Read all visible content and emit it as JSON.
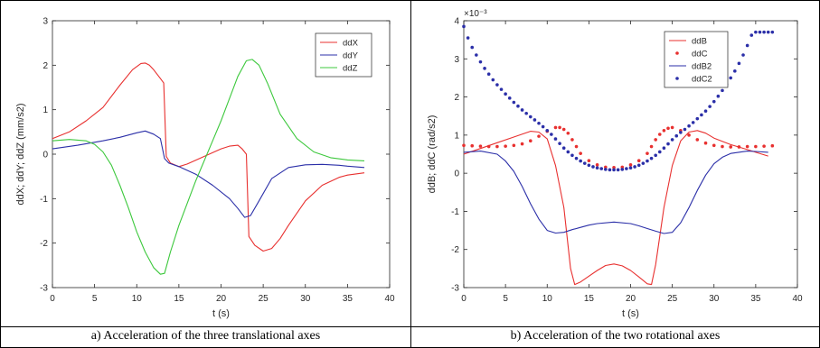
{
  "captions": {
    "left": "a) Acceleration of the three translational axes",
    "right": "b) Acceleration of the two rotational axes"
  },
  "chart_data": [
    {
      "type": "line",
      "xlabel": "t (s)",
      "ylabel": "ddX; ddY; ddZ (mm/s2)",
      "xlim": [
        0,
        40
      ],
      "ylim": [
        -3,
        3
      ],
      "xticks": [
        "0",
        "5",
        "10",
        "15",
        "20",
        "25",
        "30",
        "35",
        "40"
      ],
      "yticks": [
        "-3",
        "-2",
        "-1",
        "0",
        "1",
        "2",
        "3"
      ],
      "grid": false,
      "legend_position": "top-right",
      "series": [
        {
          "name": "ddX",
          "color": "#e8302f",
          "style": "line",
          "x": [
            0,
            2,
            4,
            6,
            8,
            9.5,
            10.5,
            11,
            11.5,
            12,
            12.8,
            13.2,
            13.5,
            14,
            15,
            16,
            18,
            20,
            21,
            22,
            22.5,
            23,
            23.3,
            24,
            25,
            26,
            27,
            28,
            30,
            32,
            34,
            35,
            37
          ],
          "y": [
            0.35,
            0.5,
            0.75,
            1.05,
            1.55,
            1.9,
            2.04,
            2.05,
            2.0,
            1.9,
            1.7,
            1.6,
            -0.05,
            -0.2,
            -0.28,
            -0.22,
            -0.05,
            0.12,
            0.18,
            0.2,
            0.12,
            0.0,
            -1.85,
            -2.05,
            -2.18,
            -2.12,
            -1.9,
            -1.6,
            -1.05,
            -0.7,
            -0.52,
            -0.47,
            -0.42
          ]
        },
        {
          "name": "ddY",
          "color": "#2b2fa8",
          "style": "line",
          "x": [
            0,
            3,
            6,
            8,
            10,
            11,
            12,
            12.8,
            13.3,
            13.8,
            15,
            17,
            19,
            21,
            22,
            22.8,
            23.5,
            24.5,
            26,
            28,
            30,
            32,
            34,
            35,
            37
          ],
          "y": [
            0.12,
            0.2,
            0.3,
            0.38,
            0.48,
            0.52,
            0.45,
            0.35,
            -0.1,
            -0.2,
            -0.28,
            -0.45,
            -0.7,
            -1.0,
            -1.22,
            -1.42,
            -1.38,
            -1.05,
            -0.55,
            -0.3,
            -0.24,
            -0.23,
            -0.25,
            -0.27,
            -0.3
          ]
        },
        {
          "name": "ddZ",
          "color": "#3cc83c",
          "style": "line",
          "x": [
            0,
            2,
            4,
            5,
            6,
            7,
            8,
            9,
            10,
            11,
            12,
            12.8,
            13.3,
            14,
            15,
            17,
            19,
            20,
            21,
            22,
            23,
            23.7,
            24.5,
            25.5,
            27,
            29,
            31,
            33,
            35,
            37
          ],
          "y": [
            0.3,
            0.33,
            0.3,
            0.22,
            0.05,
            -0.25,
            -0.7,
            -1.2,
            -1.75,
            -2.2,
            -2.55,
            -2.7,
            -2.68,
            -2.2,
            -1.6,
            -0.6,
            0.3,
            0.75,
            1.25,
            1.75,
            2.1,
            2.13,
            2.0,
            1.6,
            0.9,
            0.35,
            0.05,
            -0.08,
            -0.13,
            -0.15
          ]
        }
      ]
    },
    {
      "type": "line",
      "xlabel": "t (s)",
      "ylabel": "ddB; ddC (rad/s2)",
      "exponent_label": "×10⁻³",
      "xlim": [
        0,
        40
      ],
      "ylim": [
        -3,
        4
      ],
      "xticks": [
        "0",
        "5",
        "10",
        "15",
        "20",
        "25",
        "30",
        "35",
        "40"
      ],
      "yticks": [
        "-3",
        "-2",
        "-1",
        "0",
        "1",
        "2",
        "3",
        "4"
      ],
      "grid": false,
      "legend_position": "top-right",
      "series": [
        {
          "name": "ddB",
          "color": "#e8302f",
          "style": "line",
          "x": [
            0,
            2,
            4,
            6,
            8,
            9,
            10,
            11,
            12,
            12.8,
            13.3,
            14,
            15,
            16,
            17,
            18,
            19,
            20,
            21,
            22,
            22.5,
            23,
            24,
            25,
            26,
            27,
            28,
            29,
            30,
            32,
            34,
            35,
            36.5
          ],
          "y": [
            0.5,
            0.65,
            0.8,
            0.95,
            1.1,
            1.08,
            0.9,
            0.2,
            -0.9,
            -2.5,
            -2.92,
            -2.85,
            -2.7,
            -2.55,
            -2.42,
            -2.38,
            -2.43,
            -2.55,
            -2.72,
            -2.9,
            -2.92,
            -2.4,
            -0.9,
            0.2,
            0.85,
            1.08,
            1.12,
            1.05,
            0.92,
            0.75,
            0.62,
            0.55,
            0.45
          ]
        },
        {
          "name": "ddC",
          "color": "#e8302f",
          "style": "dots",
          "x": [
            0,
            1,
            2,
            3,
            4,
            5,
            6,
            7,
            8,
            9,
            10,
            11,
            11.5,
            12,
            12.5,
            13,
            13.5,
            14,
            15,
            16,
            17,
            18,
            19,
            20,
            21,
            22,
            22.5,
            23,
            23.5,
            24,
            24.5,
            25,
            26,
            27,
            28,
            29,
            30,
            31,
            32,
            33,
            34,
            35,
            36,
            37
          ],
          "y": [
            0.73,
            0.72,
            0.71,
            0.7,
            0.7,
            0.71,
            0.73,
            0.77,
            0.85,
            0.97,
            1.1,
            1.2,
            1.2,
            1.15,
            1.05,
            0.88,
            0.7,
            0.52,
            0.33,
            0.22,
            0.16,
            0.15,
            0.16,
            0.22,
            0.33,
            0.52,
            0.7,
            0.88,
            1.02,
            1.12,
            1.18,
            1.2,
            1.12,
            1.0,
            0.88,
            0.79,
            0.73,
            0.7,
            0.69,
            0.69,
            0.7,
            0.7,
            0.71,
            0.72
          ]
        },
        {
          "name": "ddB2",
          "color": "#2b2fa8",
          "style": "line",
          "x": [
            0,
            2,
            4,
            5,
            6,
            7,
            8,
            9,
            10,
            11,
            12,
            13,
            14,
            15,
            16,
            18,
            20,
            21,
            22,
            23,
            24,
            25,
            26,
            27,
            28,
            29,
            30,
            31,
            32,
            34,
            35,
            36.5
          ],
          "y": [
            0.55,
            0.58,
            0.5,
            0.32,
            0.05,
            -0.35,
            -0.8,
            -1.2,
            -1.5,
            -1.57,
            -1.55,
            -1.48,
            -1.42,
            -1.36,
            -1.32,
            -1.28,
            -1.32,
            -1.38,
            -1.45,
            -1.52,
            -1.58,
            -1.55,
            -1.3,
            -0.9,
            -0.45,
            -0.05,
            0.25,
            0.42,
            0.52,
            0.58,
            0.57,
            0.55
          ]
        },
        {
          "name": "ddC2",
          "color": "#2b2fa8",
          "style": "dots",
          "x": [
            0,
            0.5,
            1,
            1.5,
            2,
            2.5,
            3,
            3.5,
            4,
            4.5,
            5,
            5.5,
            6,
            6.5,
            7,
            7.5,
            8,
            8.5,
            9,
            9.5,
            10,
            10.5,
            11,
            11.5,
            12,
            12.5,
            13,
            13.5,
            14,
            14.5,
            15,
            15.5,
            16,
            16.5,
            17,
            17.5,
            18,
            18.5,
            19,
            19.5,
            20,
            20.5,
            21,
            21.5,
            22,
            22.5,
            23,
            23.5,
            24,
            24.5,
            25,
            25.5,
            26,
            26.5,
            27,
            27.5,
            28,
            28.5,
            29,
            29.5,
            30,
            30.5,
            31,
            31.5,
            32,
            32.5,
            33,
            33.5,
            34,
            34.5,
            35,
            35.5,
            36,
            36.5,
            37
          ],
          "y": [
            3.85,
            3.55,
            3.3,
            3.1,
            2.92,
            2.75,
            2.6,
            2.45,
            2.32,
            2.2,
            2.08,
            1.97,
            1.86,
            1.76,
            1.66,
            1.57,
            1.48,
            1.4,
            1.31,
            1.22,
            1.12,
            1.02,
            0.9,
            0.78,
            0.66,
            0.56,
            0.47,
            0.39,
            0.32,
            0.26,
            0.21,
            0.17,
            0.14,
            0.12,
            0.1,
            0.09,
            0.09,
            0.09,
            0.1,
            0.12,
            0.14,
            0.17,
            0.21,
            0.26,
            0.32,
            0.39,
            0.47,
            0.56,
            0.66,
            0.77,
            0.88,
            0.98,
            1.07,
            1.15,
            1.24,
            1.33,
            1.43,
            1.53,
            1.63,
            1.75,
            1.88,
            2.02,
            2.17,
            2.33,
            2.5,
            2.68,
            2.88,
            3.1,
            3.35,
            3.62,
            3.7,
            3.7,
            3.7,
            3.7,
            3.7
          ]
        }
      ]
    }
  ]
}
